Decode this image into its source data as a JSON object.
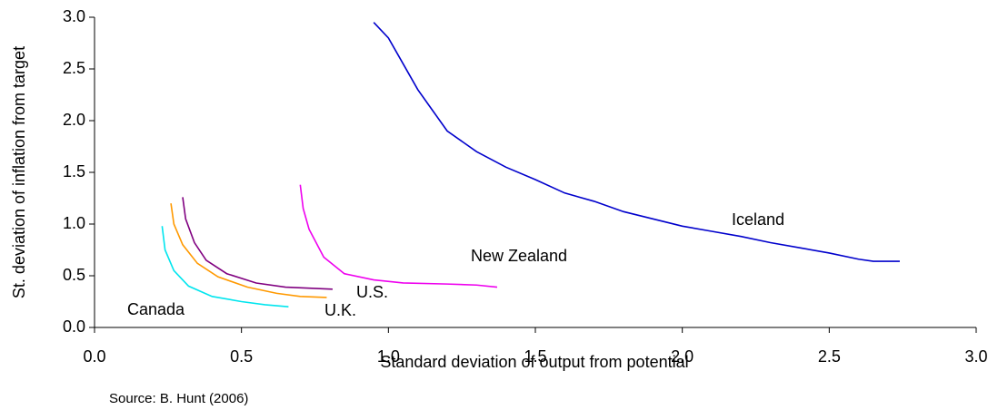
{
  "chart_data": {
    "type": "line",
    "x_label": "Standard deviation of output from potential",
    "y_label": "St. deviation of inflation from target",
    "source": "Source: B. Hunt (2006)",
    "xlim": [
      0,
      3
    ],
    "ylim": [
      0,
      3
    ],
    "xticks": [
      {
        "value": 0,
        "label": "0.0"
      },
      0.5,
      {
        "value": 1,
        "label": "1.0"
      },
      1.5,
      {
        "value": 2,
        "label": "2.0"
      },
      2.5,
      {
        "value": 3,
        "label": "3.0"
      }
    ],
    "yticks": [
      {
        "value": 0,
        "label": "0.0"
      },
      0.5,
      {
        "value": 1,
        "label": "1.0"
      },
      1.5,
      {
        "value": 2,
        "label": "2.0"
      },
      2.5,
      {
        "value": 3,
        "label": "3.0"
      }
    ],
    "series": [
      {
        "name": "Iceland",
        "color": "#0000cc",
        "x": [
          0.95,
          1.0,
          1.05,
          1.1,
          1.15,
          1.2,
          1.3,
          1.4,
          1.5,
          1.6,
          1.7,
          1.8,
          1.9,
          2.0,
          2.1,
          2.2,
          2.3,
          2.4,
          2.5,
          2.6,
          2.65,
          2.74
        ],
        "values": [
          2.95,
          2.8,
          2.55,
          2.3,
          2.1,
          1.9,
          1.7,
          1.55,
          1.43,
          1.3,
          1.22,
          1.12,
          1.05,
          0.98,
          0.93,
          0.88,
          0.82,
          0.77,
          0.72,
          0.66,
          0.64,
          0.64
        ]
      },
      {
        "name": "New Zealand",
        "color": "#ee00ee",
        "x": [
          0.7,
          0.71,
          0.73,
          0.78,
          0.85,
          0.95,
          1.05,
          1.2,
          1.3,
          1.37
        ],
        "values": [
          1.38,
          1.15,
          0.95,
          0.68,
          0.52,
          0.46,
          0.43,
          0.42,
          0.41,
          0.39
        ]
      },
      {
        "name": "U.S.",
        "color": "#800080",
        "x": [
          0.3,
          0.31,
          0.34,
          0.38,
          0.45,
          0.55,
          0.65,
          0.81
        ],
        "values": [
          1.26,
          1.05,
          0.82,
          0.65,
          0.52,
          0.43,
          0.39,
          0.37
        ]
      },
      {
        "name": "U.K.",
        "color": "#ff9900",
        "x": [
          0.26,
          0.27,
          0.3,
          0.35,
          0.42,
          0.52,
          0.62,
          0.7,
          0.79
        ],
        "values": [
          1.2,
          1.0,
          0.8,
          0.62,
          0.49,
          0.39,
          0.33,
          0.3,
          0.29
        ]
      },
      {
        "name": "Canada",
        "color": "#00e5ee",
        "x": [
          0.23,
          0.24,
          0.27,
          0.32,
          0.4,
          0.5,
          0.58,
          0.66
        ],
        "values": [
          0.98,
          0.75,
          0.55,
          0.4,
          0.3,
          0.25,
          0.22,
          0.2
        ]
      }
    ]
  }
}
